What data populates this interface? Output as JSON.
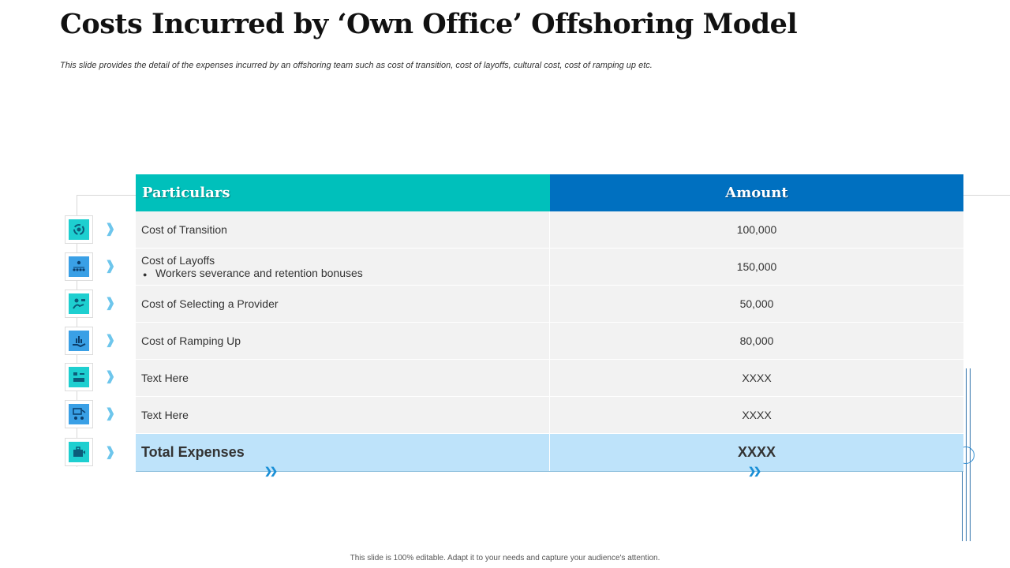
{
  "title": "Costs Incurred by ‘Own Office’ Offshoring Model",
  "subtitle": "This slide provides the detail of the expenses incurred by an offshoring team such as cost of transition, cost of layoffs, cultural cost, cost of ramping up etc.",
  "table": {
    "headers": {
      "particulars": "Particulars",
      "amount": "Amount"
    },
    "rows": [
      {
        "label": "Cost of Transition",
        "bullet": "",
        "amount": "100,000",
        "icon": "transition-cycle-icon"
      },
      {
        "label": "Cost of Layoffs",
        "bullet": "Workers severance and retention bonuses",
        "amount": "150,000",
        "icon": "team-hierarchy-icon"
      },
      {
        "label": "Cost of Selecting a Provider",
        "bullet": "",
        "amount": "50,000",
        "icon": "hand-money-icon"
      },
      {
        "label": "Cost of Ramping Up",
        "bullet": "",
        "amount": "80,000",
        "icon": "growth-chart-hand-icon"
      },
      {
        "label": "Text Here",
        "bullet": "",
        "amount": "XXXX",
        "icon": "office-desk-icon"
      },
      {
        "label": "Text Here",
        "bullet": "",
        "amount": "XXXX",
        "icon": "meeting-screen-icon"
      }
    ],
    "total": {
      "label": "Total Expenses",
      "amount": "XXXX",
      "icon": "briefcase-icon"
    }
  },
  "footer": "This slide is 100% editable. Adapt it to your needs and capture your audience's attention.",
  "colors": {
    "header_particulars": "#00c0bb",
    "header_amount": "#0070c0",
    "row_bg": "#f2f2f2",
    "total_bg": "#bee3fa"
  }
}
